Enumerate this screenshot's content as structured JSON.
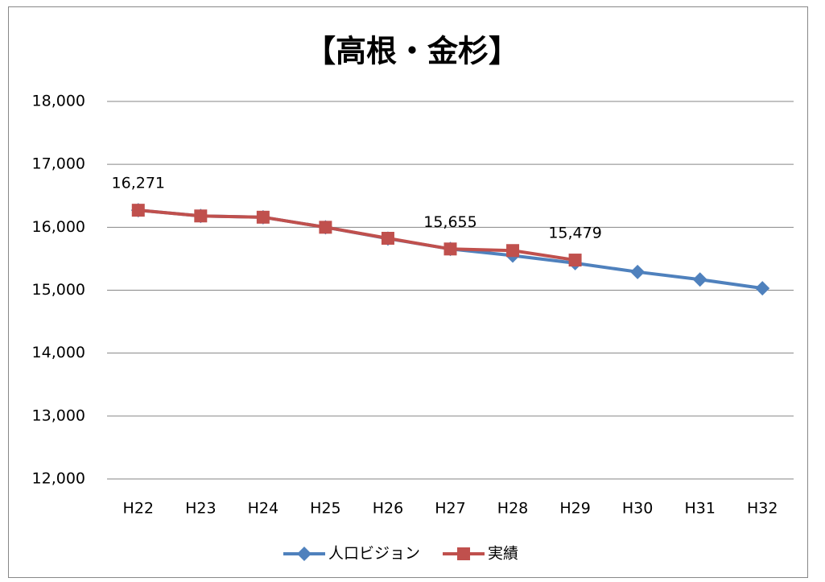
{
  "chart_data": {
    "type": "line",
    "title": "【高根・金杉】",
    "categories": [
      "H22",
      "H23",
      "H24",
      "H25",
      "H26",
      "H27",
      "H28",
      "H29",
      "H30",
      "H31",
      "H32"
    ],
    "series": [
      {
        "name": "人口ビジョン",
        "color": "#4f81bd",
        "marker": "diamond",
        "values": [
          16271,
          16180,
          16160,
          16000,
          15820,
          15655,
          15550,
          15430,
          15290,
          15170,
          15030
        ]
      },
      {
        "name": "実績",
        "color": "#c0504d",
        "marker": "square",
        "values": [
          16271,
          16180,
          16160,
          16000,
          15825,
          15655,
          15630,
          15479,
          null,
          null,
          null
        ],
        "value_labels": [
          "16,271",
          null,
          null,
          null,
          null,
          "15,655",
          null,
          "15,479",
          null,
          null,
          null
        ]
      }
    ],
    "ylim": [
      12000,
      18000
    ],
    "yticks": [
      {
        "value": 12000,
        "label": "12,000"
      },
      {
        "value": 13000,
        "label": "13,000"
      },
      {
        "value": 14000,
        "label": "14,000"
      },
      {
        "value": 15000,
        "label": "15,000"
      },
      {
        "value": 16000,
        "label": "16,000"
      },
      {
        "value": 17000,
        "label": "17,000"
      },
      {
        "value": 18000,
        "label": "18,000"
      }
    ],
    "grid": true,
    "legend": "bottom"
  }
}
